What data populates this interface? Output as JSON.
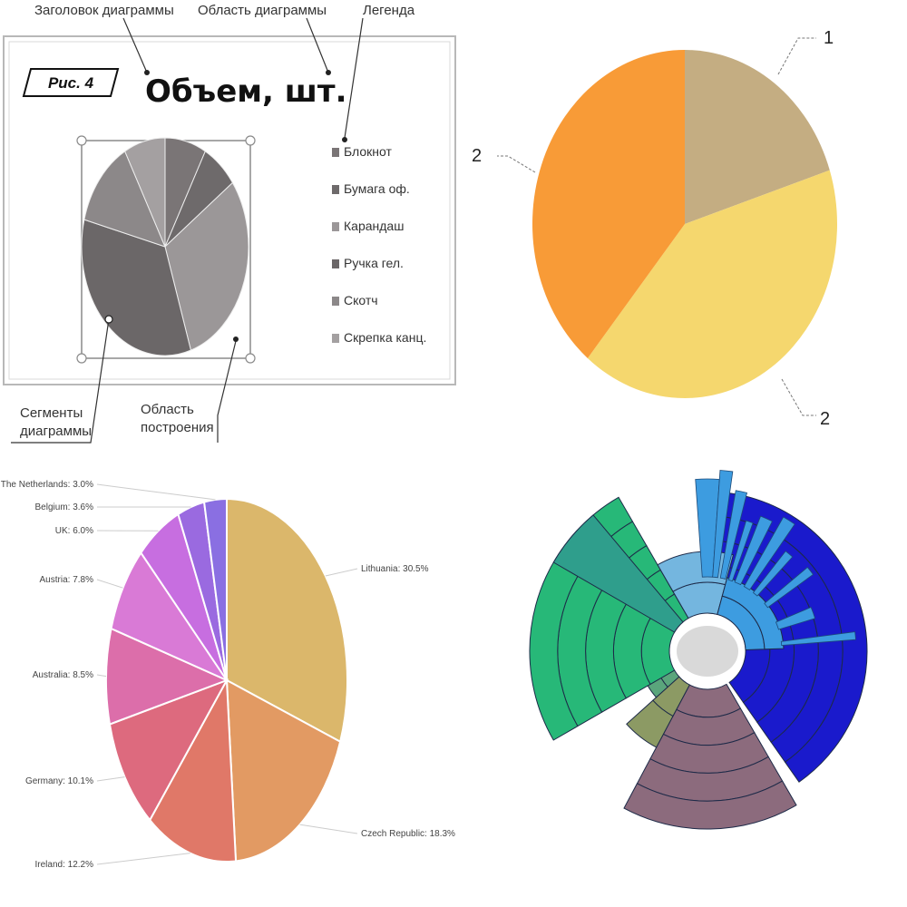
{
  "anatomy": {
    "figure_label": "Рис. 4",
    "callouts": {
      "chart_title": "Заголовок диаграммы",
      "chart_area": "Область диаграммы",
      "legend": "Легенда",
      "segments_line1": "Сегменты",
      "segments_line2": "диаграммы",
      "plot_area_line1": "Область",
      "plot_area_line2": "построения"
    }
  },
  "chart_data": [
    {
      "type": "pie",
      "title": "Объем, шт.",
      "legend_position": "right",
      "categories": [
        "Блокнот",
        "Бумага оф.",
        "Карандаш",
        "Ручка гел.",
        "Скотч",
        "Скрепка канц."
      ],
      "values": [
        8,
        7,
        30,
        34,
        13,
        8
      ],
      "colors": [
        "#7a7576",
        "#6e6a6b",
        "#9b9798",
        "#6b6768",
        "#8c8889",
        "#a4a0a1"
      ]
    },
    {
      "type": "pie",
      "slice_labels": [
        "1",
        "2",
        "2"
      ],
      "values": [
        20,
        41,
        39
      ],
      "colors": [
        "#c4ad82",
        "#f5d76e",
        "#f89b37"
      ]
    },
    {
      "type": "pie",
      "categories": [
        "Lithuania",
        "Czech Republic",
        "Ireland",
        "Germany",
        "Australia",
        "Austria",
        "UK",
        "Belgium",
        "The Netherlands"
      ],
      "values": [
        30.5,
        18.3,
        12.2,
        10.1,
        8.5,
        7.8,
        6.0,
        3.6,
        3.0
      ],
      "labels": [
        "Lithuania: 30.5%",
        "Czech Republic: 18.3%",
        "Ireland: 12.2%",
        "Germany: 10.1%",
        "Australia: 8.5%",
        "Austria: 7.8%",
        "UK: 6.0%",
        "Belgium: 3.6%",
        "The Netherlands: 3.0%"
      ],
      "colors": [
        "#dbb76b",
        "#e29a63",
        "#e07868",
        "#dd6a7e",
        "#dc6eaa",
        "#d97ad6",
        "#c76ee0",
        "#9a6ae0",
        "#8a6fe2"
      ]
    },
    {
      "type": "sunburst",
      "groups": [
        {
          "name": "",
          "color": "#1a1acc",
          "start": 0,
          "end": 145,
          "outer": 0.88,
          "rings": 5
        },
        {
          "name": "",
          "color": "#8c6b7d",
          "start": 150,
          "end": 208,
          "outer": 0.98,
          "rings": 5
        },
        {
          "name": "",
          "color": "#8c9a64",
          "start": 208,
          "end": 228,
          "outer": 0.6,
          "rings": 2
        },
        {
          "name": "",
          "color": "#5aa57c",
          "start": 228,
          "end": 240,
          "outer": 0.38,
          "rings": 2
        },
        {
          "name": "",
          "color": "#27b878",
          "start": 240,
          "end": 330,
          "outer": 0.98,
          "rings": 5
        },
        {
          "name": "",
          "color": "#2f9e8c",
          "start": 300,
          "end": 320,
          "outer": 0.98,
          "rings": 1
        },
        {
          "name": "",
          "color": "#74b6df",
          "start": 330,
          "end": 375,
          "outer": 0.55,
          "rings": 2
        },
        {
          "name": "",
          "color": "#3d9ce0",
          "start": 375,
          "end": 448,
          "outer": 0.42,
          "rings": 2
        }
      ],
      "spikes": [
        {
          "angle": 360,
          "width": 8,
          "outer": 0.95
        },
        {
          "angle": 366,
          "width": 4,
          "outer": 1.0
        },
        {
          "angle": 372,
          "width": 4,
          "outer": 0.9
        },
        {
          "angle": 378,
          "width": 3,
          "outer": 0.75
        },
        {
          "angle": 384,
          "width": 5,
          "outer": 0.8
        },
        {
          "angle": 392,
          "width": 5,
          "outer": 0.85
        },
        {
          "angle": 400,
          "width": 4,
          "outer": 0.7
        },
        {
          "angle": 412,
          "width": 4,
          "outer": 0.72
        },
        {
          "angle": 430,
          "width": 6,
          "outer": 0.62
        },
        {
          "angle": 444,
          "width": 3,
          "outer": 0.82
        }
      ]
    }
  ]
}
